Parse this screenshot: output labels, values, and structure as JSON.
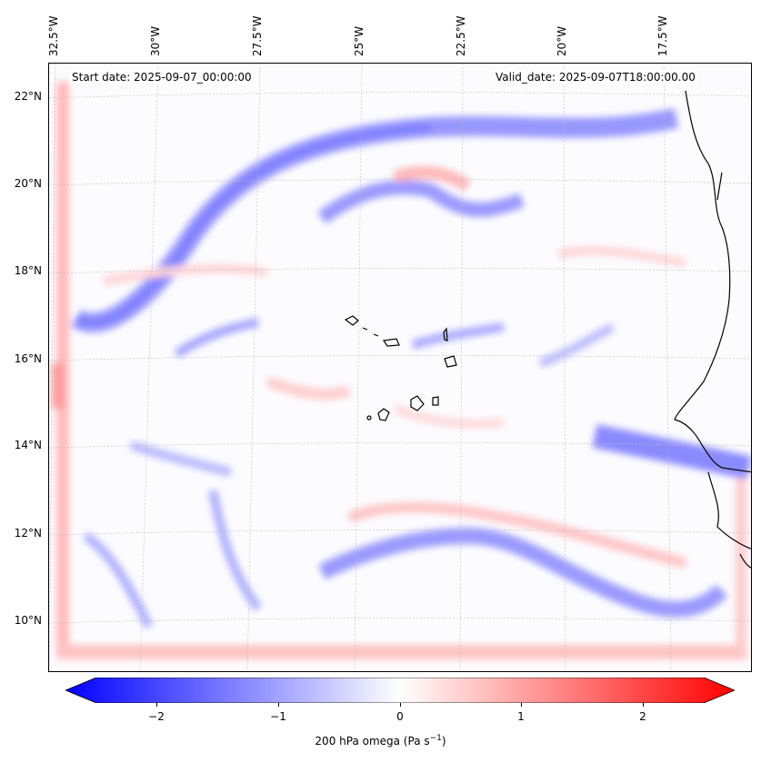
{
  "map": {
    "start_date": "Start date: 2025-09-07_00:00:00",
    "valid_date": "Valid_date: 2025-09-07T18:00:00.00",
    "lon_labels": [
      "32.5°W",
      "30°W",
      "27.5°W",
      "25°W",
      "22.5°W",
      "20°W",
      "17.5°W"
    ],
    "lat_labels": [
      "22°N",
      "20°N",
      "18°N",
      "16°N",
      "14°N",
      "12°N",
      "10°N"
    ],
    "field": "200 hPa omega",
    "colormap": "bwr",
    "colors": {
      "negative": "#0000ff",
      "zero": "#ffffff",
      "positive": "#ff0000",
      "coastline": "#000000"
    }
  },
  "colorbar": {
    "tick_labels": [
      "−2",
      "−1",
      "0",
      "1",
      "2"
    ],
    "tick_values": [
      -2,
      -1,
      0,
      1,
      2
    ],
    "range": [
      -2.5,
      2.5
    ],
    "title_main": "200 hPa omega (Pa s",
    "title_sup": "−1",
    "title_end": ")"
  }
}
